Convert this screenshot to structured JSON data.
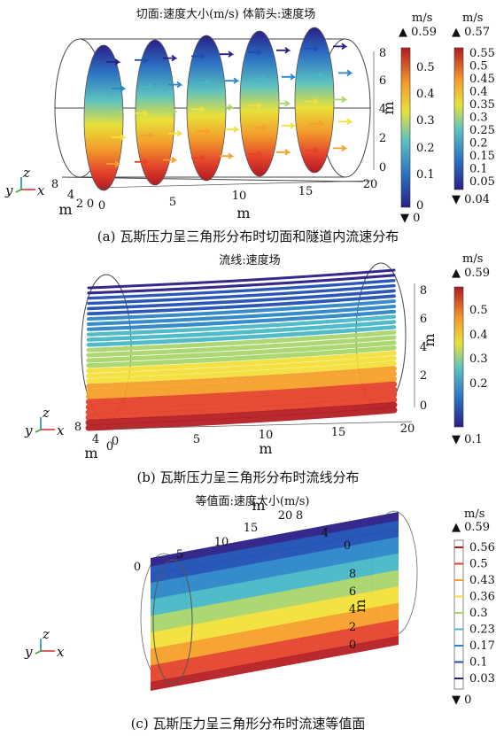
{
  "chart_data": [
    {
      "type": "3d-surface-arrows",
      "title": "切面:速度大小(m/s)  体箭头:速度场",
      "caption": "(a) 瓦斯压力呈三角形分布时切面和隧道内流速分布",
      "axis_labels": {
        "x": "m",
        "y": "m",
        "z": "m"
      },
      "x_ticks": [
        "0",
        "5",
        "10",
        "15",
        "20"
      ],
      "y_ticks": [
        "8",
        "4",
        "2",
        "0"
      ],
      "z_ticks": [
        "0",
        "2",
        "4",
        "6",
        "8"
      ],
      "colorbars": [
        {
          "unit": "m/s",
          "max_label": "▲ 0.59",
          "min_label": "▼ 0",
          "ticks": [
            "0.5",
            "0.4",
            "0.3",
            "0.2",
            "0.1",
            "0"
          ]
        },
        {
          "unit": "m/s",
          "max_label": "▲ 0.57",
          "min_label": "▼ 0.04",
          "ticks": [
            "0.55",
            "0.5",
            "0.45",
            "0.4",
            "0.35",
            "0.3",
            "0.25",
            "0.2",
            "0.15",
            "0.1",
            "0.05"
          ]
        }
      ]
    },
    {
      "type": "3d-streamlines",
      "title": "流线:速度场",
      "caption": "(b) 瓦斯压力呈三角形分布时流线分布",
      "axis_labels": {
        "x": "m",
        "y": "m",
        "z": "m"
      },
      "x_ticks": [
        "0",
        "5",
        "10",
        "15",
        "20"
      ],
      "y_ticks": [
        "8",
        "4",
        "0"
      ],
      "z_ticks": [
        "0",
        "2",
        "4",
        "6",
        "8"
      ],
      "colorbars": [
        {
          "unit": "m/s",
          "max_label": "▲ 0.59",
          "min_label": "▼ 0.1",
          "ticks": [
            "0.5",
            "0.4",
            "0.3",
            "0.2"
          ]
        }
      ]
    },
    {
      "type": "3d-isosurface",
      "title": "等值面:速度大小(m/s)",
      "caption": "(c) 瓦斯压力呈三角形分布时流速等值面",
      "axis_labels": {
        "x": "m",
        "y": "m",
        "z": "m"
      },
      "x_ticks": [
        "0",
        "5",
        "10",
        "15",
        "20"
      ],
      "y_ticks": [
        "8",
        "4",
        "0"
      ],
      "z_ticks": [
        "0",
        "2",
        "4",
        "6",
        "8"
      ],
      "colorbars": [
        {
          "unit": "m/s",
          "max_label": "▲ 0.59",
          "min_label": "▼ 0",
          "ticks": [
            "0.56",
            "0.5",
            "0.43",
            "0.36",
            "0.3",
            "0.23",
            "0.17",
            "0.1",
            "0.03"
          ]
        }
      ]
    }
  ],
  "palette": {
    "jet": [
      "#2a1f86",
      "#1f4fb5",
      "#2b86c8",
      "#48b8c6",
      "#a9d56a",
      "#f3e03a",
      "#f5a02a",
      "#e5432b",
      "#b51f24"
    ],
    "frame": "#444444"
  },
  "triad": {
    "x": "x",
    "y": "y",
    "z": "z"
  }
}
